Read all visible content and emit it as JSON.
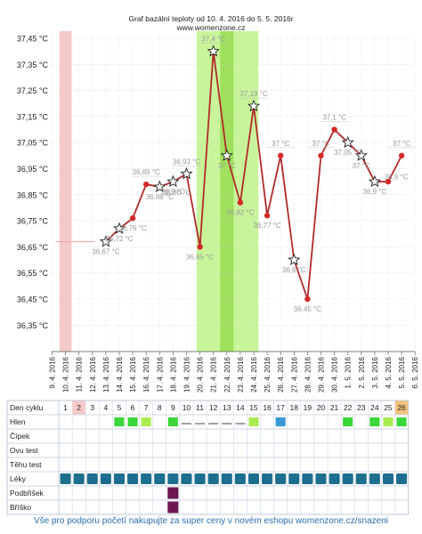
{
  "colors": {
    "line": "#b22a2a",
    "point": "#d42a2a",
    "fertile_band": "#c8f59a",
    "ovulation_band": "#9ee05a",
    "menstruation_band": "#f6c9c9",
    "cover_line": "#f0a8a8",
    "cell_green": "#3ad63a",
    "cell_lightgreen": "#a9ec4f",
    "cell_blue": "#3a9ad6",
    "cell_pills": "#1d6f8f",
    "cell_purple": "#6d1452",
    "cycle_day_highlight": "#f6c9c9",
    "cycle_day_last": "#f3c27a"
  },
  "chart_data": {
    "type": "line",
    "title": "Graf bazální teploty od 10. 4. 2016 do 5. 5. 2016r",
    "subtitle": "www.womenzone.cz",
    "y_unit": "°C",
    "ylim": [
      36.25,
      37.55
    ],
    "yticks": [
      "37,45 °C",
      "37,35 °C",
      "37,25 °C",
      "37,15 °C",
      "37,05 °C",
      "36,95 °C",
      "36,85 °C",
      "36,75 °C",
      "36,65 °C",
      "36,55 °C",
      "36,45 °C",
      "36,35 °C"
    ],
    "ytick_values": [
      37.45,
      37.35,
      37.25,
      37.15,
      37.05,
      36.95,
      36.85,
      36.75,
      36.65,
      36.55,
      36.45,
      36.35
    ],
    "xticks": [
      "9. 4. 2016",
      "10. 4. 2016",
      "11. 4. 2016",
      "12. 4. 2016",
      "13. 4. 2016",
      "14. 4. 2016",
      "15. 4. 2016",
      "16. 4. 2016",
      "17. 4. 2016",
      "18. 4. 2016",
      "19. 4. 2016",
      "20. 4. 2016",
      "21. 4. 2016",
      "22. 4. 2016",
      "23. 4. 2016",
      "24. 4. 2016",
      "25. 4. 2016",
      "26. 4. 2016",
      "27. 4. 2016",
      "28. 4. 2016",
      "29. 4. 2016",
      "30. 4. 2016",
      "1. 5. 2016",
      "2. 5. 2016",
      "3. 5. 2016",
      "4. 5. 2016",
      "5. 5. 2016",
      "6. 5. 2016"
    ],
    "cover_line": {
      "value": 36.67,
      "from_day": 0,
      "to_day": 3
    },
    "menstruation_day_range": [
      0.55,
      1.45
    ],
    "fertile_day_range": [
      10.75,
      15.35
    ],
    "ovulation_day_range": [
      12.5,
      13.5
    ],
    "points": [
      {
        "day": 3,
        "value": 36.67,
        "label": "36,67 °C",
        "star": true
      },
      {
        "day": 4,
        "value": 36.72,
        "label": "36,72 °C",
        "star": true
      },
      {
        "day": 5,
        "value": 36.76,
        "label": "36,76 °C",
        "star": false
      },
      {
        "day": 6,
        "value": 36.89,
        "label": "36,89 °C",
        "star": false
      },
      {
        "day": 7,
        "value": 36.88,
        "label": "36,88 °C",
        "star": true
      },
      {
        "day": 8,
        "value": 36.9,
        "label": "36,9 °C",
        "star": true
      },
      {
        "day": 9,
        "value": 36.93,
        "label": "36,93 °C",
        "star": true
      },
      {
        "day": 10,
        "value": 36.65,
        "label": "36,65 °C",
        "star": false
      },
      {
        "day": 11,
        "value": 37.4,
        "label": "37,4 °C",
        "star": true
      },
      {
        "day": 12,
        "value": 37.0,
        "label": "37 °C",
        "star": true
      },
      {
        "day": 13,
        "value": 36.82,
        "label": "36,82 °C",
        "star": false
      },
      {
        "day": 14,
        "value": 37.19,
        "label": "37,19 °C",
        "star": true
      },
      {
        "day": 15,
        "value": 36.77,
        "label": "36,77 °C",
        "star": false
      },
      {
        "day": 16,
        "value": 37.0,
        "label": "37 °C",
        "star": false
      },
      {
        "day": 17,
        "value": 36.6,
        "label": "36,6 °C",
        "star": true
      },
      {
        "day": 18,
        "value": 36.45,
        "label": "36,45 °C",
        "star": false
      },
      {
        "day": 19,
        "value": 37.0,
        "label": "37 °C",
        "star": false
      },
      {
        "day": 20,
        "value": 37.1,
        "label": "37,1 °C",
        "star": false
      },
      {
        "day": 21,
        "value": 37.05,
        "label": "37,05 °C",
        "star": true
      },
      {
        "day": 22,
        "value": 37.0,
        "label": "37 °C",
        "star": true
      },
      {
        "day": 23,
        "value": 36.9,
        "label": "36,9 °C",
        "star": true
      },
      {
        "day": 24,
        "value": 36.9,
        "label": "",
        "star": false
      },
      {
        "day": 25,
        "value": 37.0,
        "label": "37 °C",
        "star": false
      }
    ],
    "extra_labels": [
      {
        "day": 8.3,
        "value": 36.86,
        "text": "36,86 °C"
      },
      {
        "day": 24.6,
        "value": 36.92,
        "text": "36,9 °C"
      }
    ]
  },
  "table": {
    "header_label": "Den cyklu",
    "cycle_days": [
      "1",
      "2",
      "3",
      "4",
      "5",
      "6",
      "7",
      "8",
      "9",
      "10",
      "11",
      "12",
      "13",
      "14",
      "15",
      "16",
      "17",
      "18",
      "19",
      "20",
      "21",
      "22",
      "23",
      "24",
      "25",
      "26"
    ],
    "rows": [
      {
        "label": "Hlen",
        "cells": {
          "5": "green",
          "6": "green",
          "7": "lightgreen",
          "9": "green",
          "10": "dash",
          "11": "dash",
          "12": "dash",
          "13": "dash",
          "14": "dash",
          "15": "lightgreen",
          "17": "blue",
          "22": "green",
          "24": "green",
          "25": "lightgreen",
          "26": "green"
        }
      },
      {
        "label": "Čípek",
        "cells": {}
      },
      {
        "label": "Ovu test",
        "cells": {}
      },
      {
        "label": "Těhu test",
        "cells": {}
      },
      {
        "label": "Léky",
        "cells": {
          "all": "pills"
        }
      },
      {
        "label": "Podbřišek",
        "cells": {
          "9": "purple"
        }
      },
      {
        "label": "Bříško",
        "cells": {
          "9": "purple"
        }
      }
    ]
  },
  "footer_text": "Vše pro podporu početí nakupujte za super ceny v novém eshopu womenzone.cz/snazeni"
}
